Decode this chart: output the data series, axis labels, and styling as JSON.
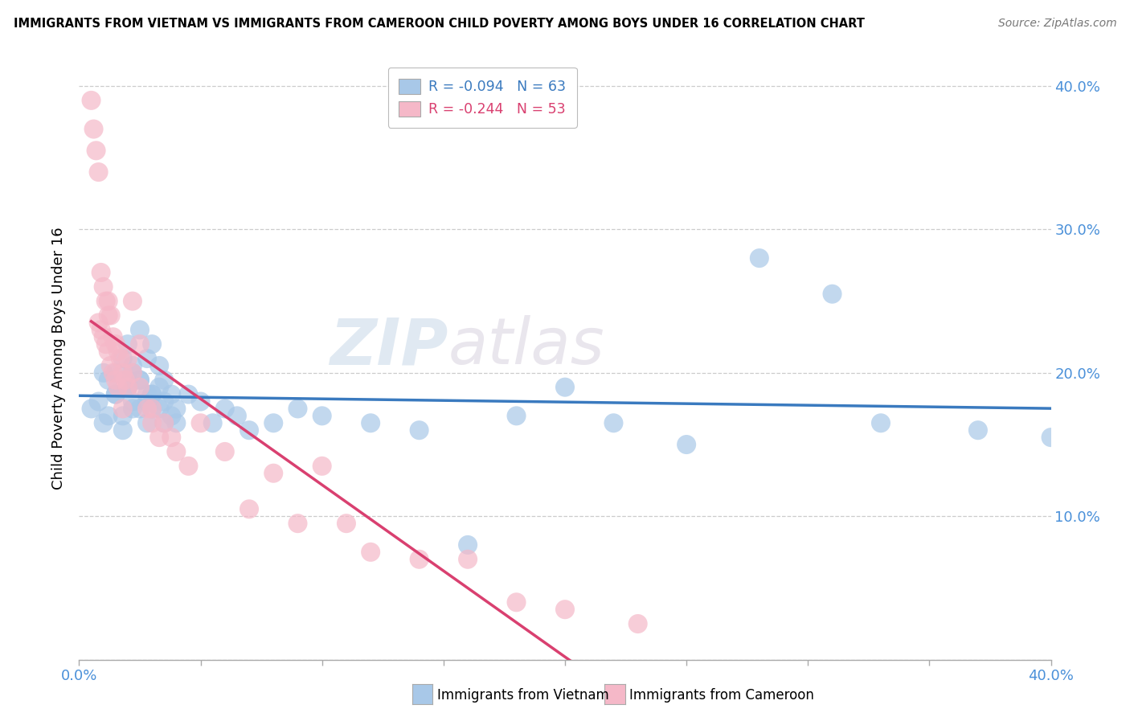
{
  "title": "IMMIGRANTS FROM VIETNAM VS IMMIGRANTS FROM CAMEROON CHILD POVERTY AMONG BOYS UNDER 16 CORRELATION CHART",
  "source": "Source: ZipAtlas.com",
  "ylabel": "Child Poverty Among Boys Under 16",
  "xlim": [
    0.0,
    0.4
  ],
  "ylim": [
    0.0,
    0.42
  ],
  "yticks": [
    0.0,
    0.1,
    0.2,
    0.3,
    0.4
  ],
  "ytick_labels": [
    "",
    "10.0%",
    "20.0%",
    "30.0%",
    "40.0%"
  ],
  "xtick_labels_left": "0.0%",
  "xtick_labels_right": "40.0%",
  "vietnam_color": "#a8c8e8",
  "cameroon_color": "#f5b8c8",
  "vietnam_line_color": "#3a7abf",
  "cameroon_line_color": "#d94070",
  "vietnam_R": -0.094,
  "vietnam_N": 63,
  "cameroon_R": -0.244,
  "cameroon_N": 53,
  "legend_label_vietnam": "Immigrants from Vietnam",
  "legend_label_cameroon": "Immigrants from Cameroon",
  "watermark_zip": "ZIP",
  "watermark_atlas": "atlas",
  "vietnam_x": [
    0.005,
    0.008,
    0.01,
    0.012,
    0.015,
    0.018,
    0.02,
    0.022,
    0.01,
    0.012,
    0.015,
    0.018,
    0.02,
    0.022,
    0.025,
    0.028,
    0.03,
    0.015,
    0.018,
    0.02,
    0.022,
    0.025,
    0.028,
    0.03,
    0.033,
    0.035,
    0.02,
    0.022,
    0.025,
    0.028,
    0.03,
    0.033,
    0.035,
    0.038,
    0.04,
    0.025,
    0.028,
    0.03,
    0.033,
    0.035,
    0.038,
    0.04,
    0.045,
    0.05,
    0.055,
    0.06,
    0.065,
    0.07,
    0.08,
    0.09,
    0.1,
    0.12,
    0.14,
    0.16,
    0.18,
    0.2,
    0.22,
    0.25,
    0.28,
    0.31,
    0.33,
    0.37,
    0.4
  ],
  "vietnam_y": [
    0.175,
    0.18,
    0.165,
    0.17,
    0.185,
    0.16,
    0.19,
    0.175,
    0.2,
    0.195,
    0.185,
    0.17,
    0.195,
    0.18,
    0.175,
    0.165,
    0.185,
    0.2,
    0.21,
    0.19,
    0.205,
    0.195,
    0.18,
    0.185,
    0.175,
    0.165,
    0.22,
    0.2,
    0.195,
    0.185,
    0.175,
    0.205,
    0.18,
    0.17,
    0.165,
    0.23,
    0.21,
    0.22,
    0.19,
    0.195,
    0.185,
    0.175,
    0.185,
    0.18,
    0.165,
    0.175,
    0.17,
    0.16,
    0.165,
    0.175,
    0.17,
    0.165,
    0.16,
    0.08,
    0.17,
    0.19,
    0.165,
    0.15,
    0.28,
    0.255,
    0.165,
    0.16,
    0.155
  ],
  "cameroon_x": [
    0.005,
    0.006,
    0.007,
    0.008,
    0.009,
    0.01,
    0.011,
    0.012,
    0.008,
    0.009,
    0.01,
    0.011,
    0.012,
    0.013,
    0.014,
    0.015,
    0.016,
    0.012,
    0.013,
    0.014,
    0.015,
    0.016,
    0.017,
    0.018,
    0.019,
    0.02,
    0.022,
    0.025,
    0.018,
    0.02,
    0.022,
    0.025,
    0.028,
    0.03,
    0.033,
    0.03,
    0.035,
    0.038,
    0.04,
    0.045,
    0.05,
    0.06,
    0.07,
    0.08,
    0.09,
    0.1,
    0.11,
    0.12,
    0.14,
    0.16,
    0.18,
    0.2,
    0.23
  ],
  "cameroon_y": [
    0.39,
    0.37,
    0.355,
    0.34,
    0.27,
    0.26,
    0.25,
    0.24,
    0.235,
    0.23,
    0.225,
    0.22,
    0.215,
    0.205,
    0.2,
    0.195,
    0.19,
    0.25,
    0.24,
    0.225,
    0.22,
    0.215,
    0.21,
    0.2,
    0.195,
    0.19,
    0.25,
    0.22,
    0.175,
    0.21,
    0.2,
    0.19,
    0.175,
    0.165,
    0.155,
    0.175,
    0.165,
    0.155,
    0.145,
    0.135,
    0.165,
    0.145,
    0.105,
    0.13,
    0.095,
    0.135,
    0.095,
    0.075,
    0.07,
    0.07,
    0.04,
    0.035,
    0.025
  ],
  "grid_color": "#cccccc",
  "spine_color": "#aaaaaa",
  "tick_color": "#4a90d9"
}
